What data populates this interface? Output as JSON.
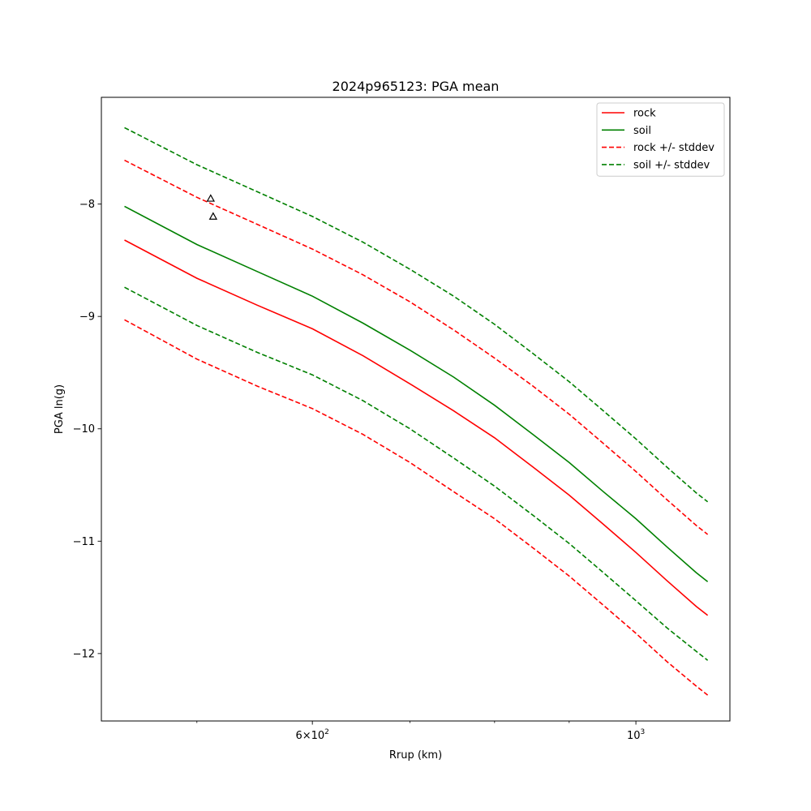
{
  "chart_data": {
    "type": "line",
    "title": "2024p965123: PGA mean",
    "xlabel": "Rrup (km)",
    "ylabel": "PGA ln(g)",
    "xscale": "log",
    "xlim": [
      430,
      1160
    ],
    "ylim": [
      -12.6,
      -7.05
    ],
    "grid": false,
    "legend_position": "top-right",
    "x_major_ticks": [
      {
        "value": 600,
        "label_base": "6×10",
        "label_exp": "2"
      },
      {
        "value": 1000,
        "label_base": "10",
        "label_exp": "3"
      }
    ],
    "x_minor_ticks": [
      500,
      700,
      800,
      900
    ],
    "y_ticks": [
      {
        "value": -8,
        "label": "−8"
      },
      {
        "value": -9,
        "label": "−9"
      },
      {
        "value": -10,
        "label": "−10"
      },
      {
        "value": -11,
        "label": "−11"
      },
      {
        "value": -12,
        "label": "−12"
      }
    ],
    "x": [
      446,
      500,
      550,
      600,
      650,
      700,
      750,
      800,
      850,
      900,
      950,
      1000,
      1050,
      1100,
      1120
    ],
    "series": [
      {
        "name": "rock",
        "color": "#ff0000",
        "style": "solid",
        "in_legend": true,
        "values": [
          -8.32,
          -8.66,
          -8.9,
          -9.11,
          -9.35,
          -9.6,
          -9.84,
          -10.08,
          -10.34,
          -10.59,
          -10.85,
          -11.1,
          -11.35,
          -11.58,
          -11.66
        ]
      },
      {
        "name": "soil",
        "color": "#008000",
        "style": "solid",
        "in_legend": true,
        "values": [
          -8.02,
          -8.36,
          -8.6,
          -8.82,
          -9.06,
          -9.3,
          -9.54,
          -9.79,
          -10.05,
          -10.3,
          -10.56,
          -10.8,
          -11.05,
          -11.28,
          -11.36
        ]
      },
      {
        "name": "rock +/- stddev",
        "color": "#ff0000",
        "style": "dashed",
        "in_legend": true,
        "values": [
          -7.61,
          -7.94,
          -8.18,
          -8.4,
          -8.63,
          -8.87,
          -9.12,
          -9.37,
          -9.62,
          -9.87,
          -10.13,
          -10.38,
          -10.63,
          -10.86,
          -10.94
        ]
      },
      {
        "name": "soil +/- stddev",
        "color": "#008000",
        "style": "dashed",
        "in_legend": true,
        "values": [
          -7.32,
          -7.65,
          -7.89,
          -8.11,
          -8.34,
          -8.58,
          -8.82,
          -9.07,
          -9.33,
          -9.58,
          -9.84,
          -10.09,
          -10.34,
          -10.57,
          -10.65
        ]
      },
      {
        "name": "",
        "color": "#ff0000",
        "style": "dashed",
        "in_legend": false,
        "values": [
          -9.03,
          -9.38,
          -9.62,
          -9.82,
          -10.05,
          -10.3,
          -10.56,
          -10.8,
          -11.06,
          -11.31,
          -11.57,
          -11.82,
          -12.07,
          -12.29,
          -12.37
        ]
      },
      {
        "name": "",
        "color": "#008000",
        "style": "dashed",
        "in_legend": false,
        "values": [
          -8.74,
          -9.08,
          -9.32,
          -9.52,
          -9.75,
          -10.0,
          -10.26,
          -10.51,
          -10.77,
          -11.02,
          -11.28,
          -11.53,
          -11.77,
          -11.98,
          -12.06
        ]
      }
    ],
    "observations": [
      {
        "x": 511,
        "y": -7.95
      },
      {
        "x": 513,
        "y": -8.11
      }
    ]
  }
}
